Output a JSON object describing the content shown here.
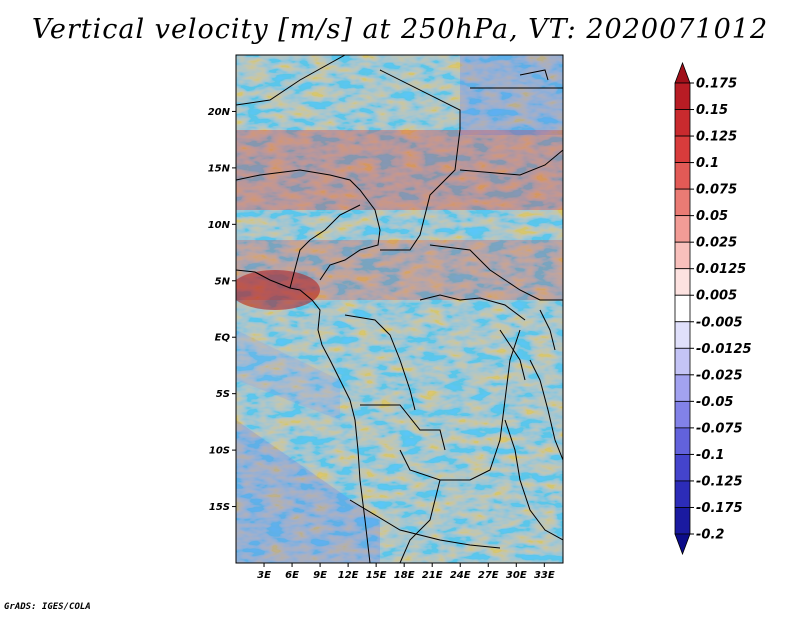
{
  "title": "Vertical velocity [m/s] at 250hPa, VT: 2020071012",
  "credit": "GrADS: IGES/COLA",
  "axes": {
    "lat_labels": [
      "20N",
      "15N",
      "10N",
      "5N",
      "EQ",
      "5S",
      "10S",
      "15S"
    ],
    "lat_values": [
      20,
      15,
      10,
      5,
      0,
      -5,
      -10,
      -15
    ],
    "lon_labels": [
      "3E",
      "6E",
      "9E",
      "12E",
      "15E",
      "18E",
      "21E",
      "24E",
      "27E",
      "30E",
      "33E"
    ],
    "lon_values": [
      3,
      6,
      9,
      12,
      15,
      18,
      21,
      24,
      27,
      30,
      33
    ],
    "lat_range": [
      -20,
      25
    ],
    "lon_range": [
      0,
      35
    ]
  },
  "colorbar": {
    "labels": [
      "0.175",
      "0.15",
      "0.125",
      "0.1",
      "0.075",
      "0.05",
      "0.025",
      "0.0125",
      "0.005",
      "-0.005",
      "-0.0125",
      "-0.025",
      "-0.05",
      "-0.075",
      "-0.1",
      "-0.125",
      "-0.175",
      "-0.2"
    ],
    "colors": [
      "#a0101a",
      "#b81c24",
      "#c92a2e",
      "#d83c3c",
      "#e25a56",
      "#ea7b74",
      "#f29c96",
      "#f8c0bc",
      "#fde2e0",
      "#ffffff",
      "#e0e0fb",
      "#c4c4f6",
      "#a2a2f0",
      "#8282e8",
      "#6262dc",
      "#4444cc",
      "#2c2cb8",
      "#1a1aa0",
      "#0c0c8a"
    ]
  }
}
